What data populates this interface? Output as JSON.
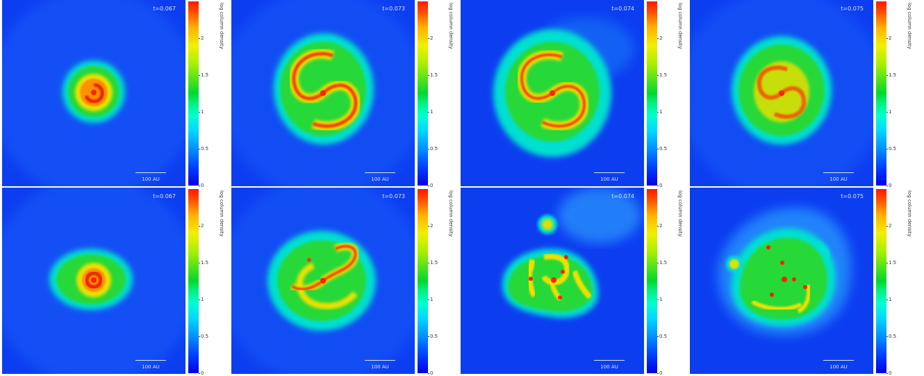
{
  "colorbar": {
    "label": "log column density",
    "ticks": [
      "0",
      "0.5",
      "1",
      "1.5",
      "2"
    ]
  },
  "scale_bar_label": "100 AU",
  "panels": [
    {
      "id": "r0c0",
      "time": "t=0.067"
    },
    {
      "id": "r0c1",
      "time": "t=0.073"
    },
    {
      "id": "r0c2",
      "time": "t=0.074"
    },
    {
      "id": "r0c3",
      "time": "t=0.075"
    },
    {
      "id": "r1c0",
      "time": "t=0.067"
    },
    {
      "id": "r1c1",
      "time": "t=0.073"
    },
    {
      "id": "r1c2",
      "time": "t=0.074"
    },
    {
      "id": "r1c3",
      "time": "t=0.075"
    }
  ],
  "colors": {
    "background": "#0c3ef0",
    "halo": "#00e0d0",
    "disc": "#28d838",
    "arm": "#f0e000",
    "core": "#ff3010",
    "sink": "#ff2000"
  }
}
